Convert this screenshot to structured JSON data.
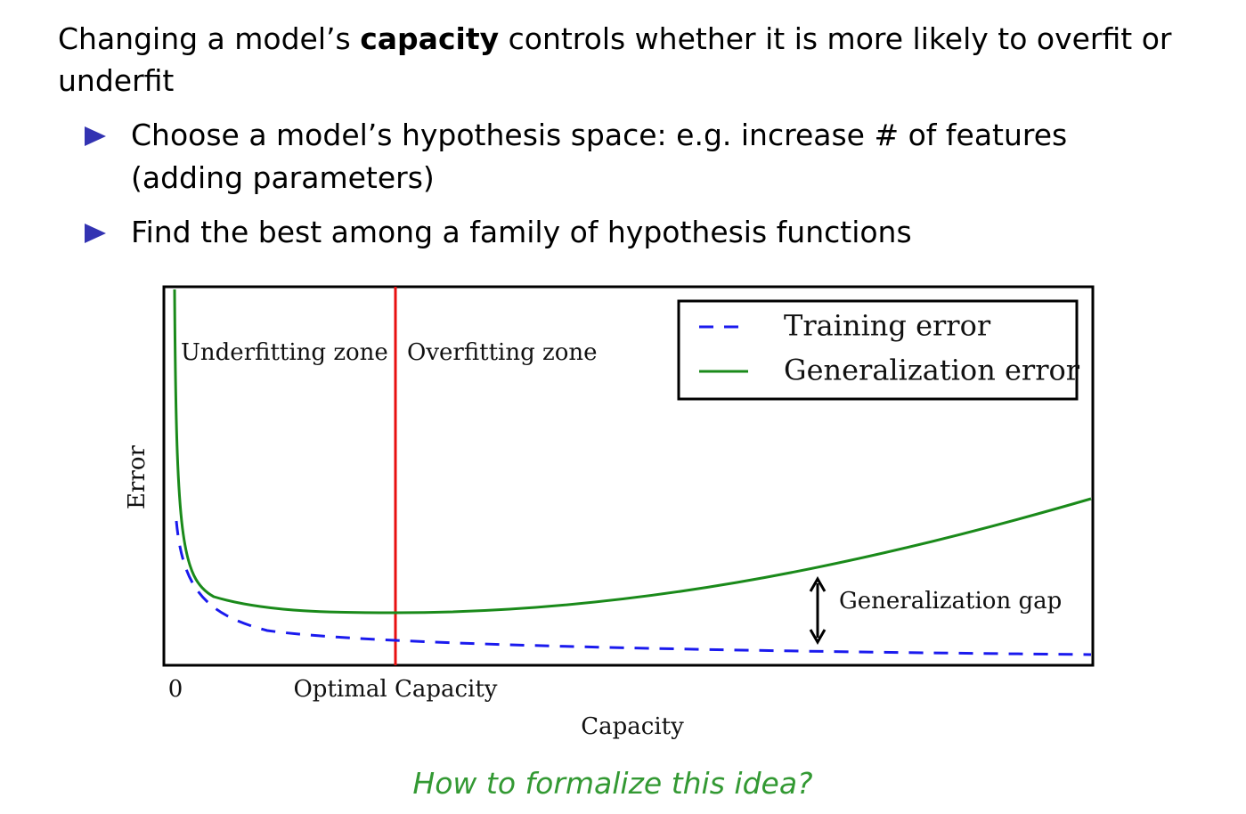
{
  "header": {
    "title_start": "Changing a model’s",
    "title_bold": "capacity",
    "title_end": "controls whether it is more likely to overfit or underfit"
  },
  "bullets": [
    "Choose a model’s hypothesis space: e.g. increase # of features (adding parameters)",
    "Find the best among a family of hypothesis functions"
  ],
  "figure": {
    "y_label": "Error",
    "x_label": "Capacity",
    "x_origin_label": "0",
    "optimal_label": "Optimal Capacity",
    "underfitting_label": "Underfitting zone",
    "overfitting_label": "Overfitting zone",
    "legend": [
      "Training error",
      "Generalization error"
    ],
    "gap_label": "Generalization gap"
  },
  "footer": "How to formalize this idea?"
}
